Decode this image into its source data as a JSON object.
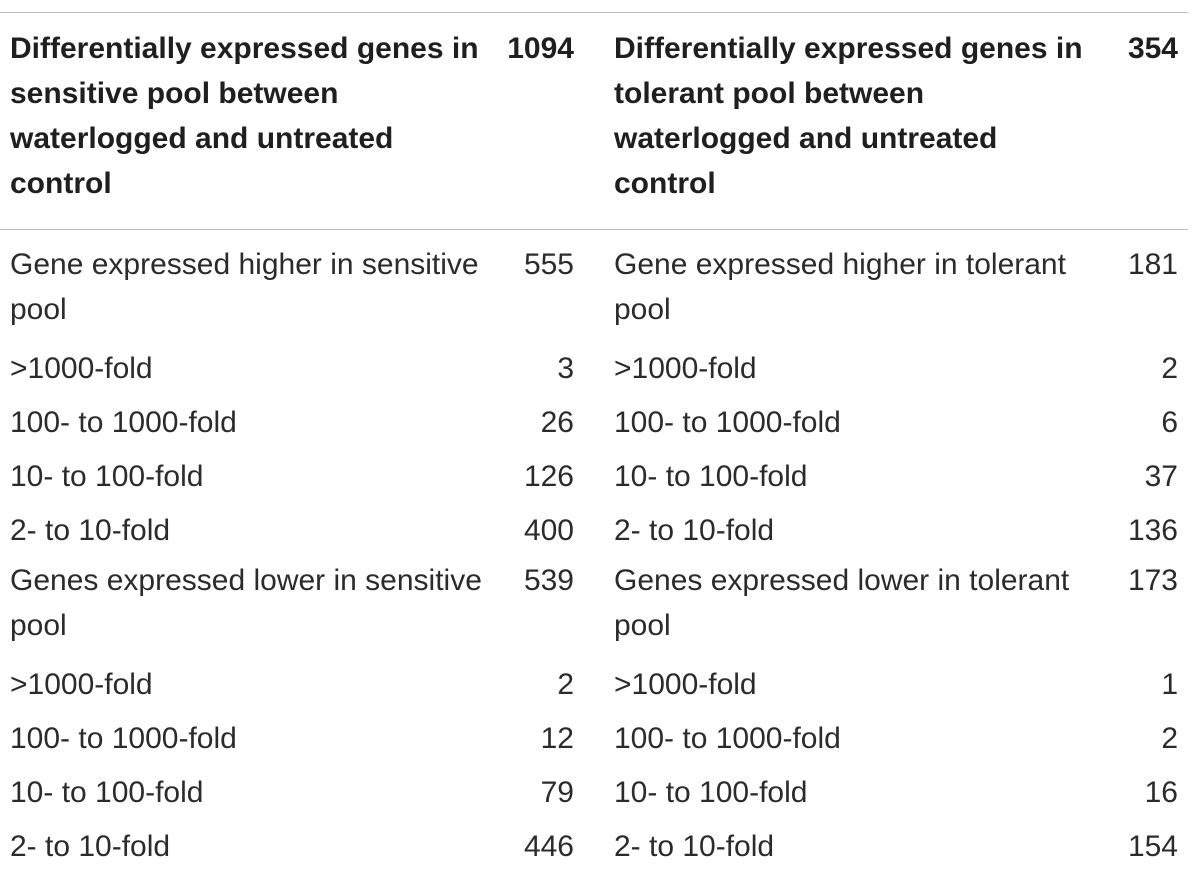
{
  "table": {
    "header": {
      "left_label": "Differentially expressed genes in sensitive pool between waterlogged and untreated control",
      "left_total": "1094",
      "right_label": "Differentially expressed genes in tolerant pool between waterlogged and untreated control",
      "right_total": "354"
    },
    "rows": [
      {
        "left_label": "Gene expressed higher in sensitive pool",
        "left_value": "555",
        "right_label": "Gene expressed higher in tolerant pool",
        "right_value": "181"
      },
      {
        "left_label": ">1000-fold",
        "left_value": "3",
        "right_label": ">1000-fold",
        "right_value": "2"
      },
      {
        "left_label": "100- to 1000-fold",
        "left_value": "26",
        "right_label": "100- to 1000-fold",
        "right_value": "6"
      },
      {
        "left_label": "10- to 100-fold",
        "left_value": "126",
        "right_label": "10- to 100-fold",
        "right_value": "37"
      },
      {
        "left_label": "2- to 10-fold",
        "left_value": "400",
        "right_label": "2- to 10-fold",
        "right_value": "136"
      },
      {
        "left_label": "Genes expressed lower in sensitive pool",
        "left_value": "539",
        "right_label": "Genes expressed lower in tolerant pool",
        "right_value": "173"
      },
      {
        "left_label": ">1000-fold",
        "left_value": "2",
        "right_label": ">1000-fold",
        "right_value": "1"
      },
      {
        "left_label": "100- to 1000-fold",
        "left_value": "12",
        "right_label": "100- to 1000-fold",
        "right_value": "2"
      },
      {
        "left_label": "10- to 100-fold",
        "left_value": "79",
        "right_label": "10- to 100-fold",
        "right_value": "16"
      },
      {
        "left_label": "2- to 10-fold",
        "left_value": "446",
        "right_label": "2- to 10-fold",
        "right_value": "154"
      }
    ]
  }
}
